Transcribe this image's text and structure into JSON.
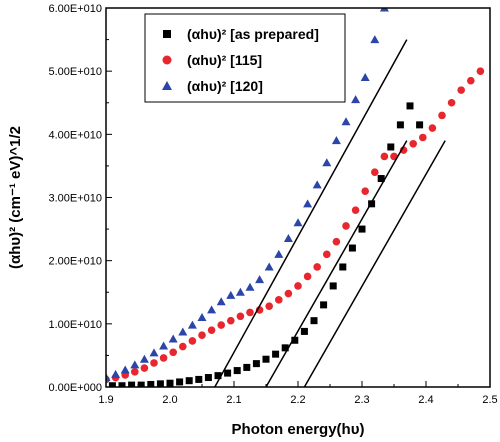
{
  "chart_data": {
    "type": "scatter",
    "title": "",
    "xlabel": "Photon energy(hυ)",
    "ylabel": "(αhυ)² (cm⁻¹ eV)^1/2",
    "xlim": [
      1.9,
      2.5
    ],
    "ylim": [
      0,
      60000000000.0
    ],
    "x_ticks": [
      1.9,
      2.0,
      2.1,
      2.2,
      2.3,
      2.4,
      2.5
    ],
    "x_tick_labels": [
      "1.9",
      "2.0",
      "2.1",
      "2.2",
      "2.3",
      "2.4",
      "2.5"
    ],
    "y_ticks": [
      0,
      10000000000.0,
      20000000000.0,
      30000000000.0,
      40000000000.0,
      50000000000.0,
      60000000000.0
    ],
    "y_tick_labels": [
      "0.00E+000",
      "1.00E+010",
      "2.00E+010",
      "3.00E+010",
      "4.00E+010",
      "5.00E+010",
      "6.00E+010"
    ],
    "grid": false,
    "legend_position": "top-right",
    "series": [
      {
        "name": "(αhυ)² [as prepared]",
        "marker": "square",
        "color": "#000000",
        "points": [
          [
            1.91,
            200000000.0
          ],
          [
            1.925,
            200000000.0
          ],
          [
            1.94,
            300000000.0
          ],
          [
            1.955,
            300000000.0
          ],
          [
            1.97,
            400000000.0
          ],
          [
            1.985,
            500000000.0
          ],
          [
            2.0,
            600000000.0
          ],
          [
            2.015,
            800000000.0
          ],
          [
            2.03,
            1000000000.0
          ],
          [
            2.045,
            1200000000.0
          ],
          [
            2.06,
            1500000000.0
          ],
          [
            2.075,
            1800000000.0
          ],
          [
            2.09,
            2200000000.0
          ],
          [
            2.105,
            2600000000.0
          ],
          [
            2.12,
            3100000000.0
          ],
          [
            2.135,
            3700000000.0
          ],
          [
            2.15,
            4400000000.0
          ],
          [
            2.165,
            5200000000.0
          ],
          [
            2.18,
            6200000000.0
          ],
          [
            2.195,
            7400000000.0
          ],
          [
            2.21,
            8800000000.0
          ],
          [
            2.225,
            10500000000.0
          ],
          [
            2.24,
            13000000000.0
          ],
          [
            2.255,
            16000000000.0
          ],
          [
            2.27,
            19000000000.0
          ],
          [
            2.285,
            22000000000.0
          ],
          [
            2.3,
            25000000000.0
          ],
          [
            2.315,
            29000000000.0
          ],
          [
            2.33,
            33000000000.0
          ],
          [
            2.345,
            38000000000.0
          ],
          [
            2.36,
            41500000000.0
          ],
          [
            2.375,
            44500000000.0
          ],
          [
            2.39,
            41500000000.0
          ]
        ]
      },
      {
        "name": "(αhυ)² [115]",
        "marker": "circle",
        "color": "#e8262d",
        "points": [
          [
            1.9,
            1200000000.0
          ],
          [
            1.915,
            1500000000.0
          ],
          [
            1.93,
            1900000000.0
          ],
          [
            1.945,
            2400000000.0
          ],
          [
            1.96,
            3000000000.0
          ],
          [
            1.975,
            3800000000.0
          ],
          [
            1.99,
            4600000000.0
          ],
          [
            2.005,
            5500000000.0
          ],
          [
            2.02,
            6400000000.0
          ],
          [
            2.035,
            7300000000.0
          ],
          [
            2.05,
            8200000000.0
          ],
          [
            2.065,
            9000000000.0
          ],
          [
            2.08,
            9800000000.0
          ],
          [
            2.095,
            10500000000.0
          ],
          [
            2.11,
            11200000000.0
          ],
          [
            2.125,
            11800000000.0
          ],
          [
            2.14,
            12200000000.0
          ],
          [
            2.155,
            12800000000.0
          ],
          [
            2.17,
            13800000000.0
          ],
          [
            2.185,
            14800000000.0
          ],
          [
            2.2,
            16000000000.0
          ],
          [
            2.215,
            17500000000.0
          ],
          [
            2.23,
            19000000000.0
          ],
          [
            2.245,
            21000000000.0
          ],
          [
            2.26,
            23000000000.0
          ],
          [
            2.275,
            25500000000.0
          ],
          [
            2.29,
            28000000000.0
          ],
          [
            2.305,
            31000000000.0
          ],
          [
            2.32,
            34000000000.0
          ],
          [
            2.335,
            36500000000.0
          ],
          [
            2.35,
            36500000000.0
          ],
          [
            2.365,
            37500000000.0
          ],
          [
            2.38,
            38500000000.0
          ],
          [
            2.395,
            39500000000.0
          ],
          [
            2.41,
            41000000000.0
          ],
          [
            2.425,
            43000000000.0
          ],
          [
            2.44,
            45000000000.0
          ],
          [
            2.455,
            47000000000.0
          ],
          [
            2.47,
            48500000000.0
          ],
          [
            2.485,
            50000000000.0
          ]
        ]
      },
      {
        "name": "(αhυ)² [120]",
        "marker": "triangle",
        "color": "#2b45a8",
        "points": [
          [
            1.9,
            1500000000.0
          ],
          [
            1.915,
            2000000000.0
          ],
          [
            1.93,
            2700000000.0
          ],
          [
            1.945,
            3500000000.0
          ],
          [
            1.96,
            4400000000.0
          ],
          [
            1.975,
            5400000000.0
          ],
          [
            1.99,
            6500000000.0
          ],
          [
            2.005,
            7600000000.0
          ],
          [
            2.02,
            8700000000.0
          ],
          [
            2.035,
            9800000000.0
          ],
          [
            2.05,
            11000000000.0
          ],
          [
            2.065,
            12200000000.0
          ],
          [
            2.08,
            13500000000.0
          ],
          [
            2.095,
            14500000000.0
          ],
          [
            2.11,
            15000000000.0
          ],
          [
            2.125,
            15800000000.0
          ],
          [
            2.14,
            17000000000.0
          ],
          [
            2.155,
            19000000000.0
          ],
          [
            2.17,
            21000000000.0
          ],
          [
            2.185,
            23500000000.0
          ],
          [
            2.2,
            26000000000.0
          ],
          [
            2.215,
            29000000000.0
          ],
          [
            2.23,
            32000000000.0
          ],
          [
            2.245,
            35500000000.0
          ],
          [
            2.26,
            39000000000.0
          ],
          [
            2.275,
            42000000000.0
          ],
          [
            2.29,
            45500000000.0
          ],
          [
            2.305,
            49000000000.0
          ],
          [
            2.32,
            55000000000.0
          ],
          [
            2.335,
            60000000000.0
          ]
        ]
      }
    ],
    "fit_lines": [
      {
        "x": [
          2.07,
          2.37
        ],
        "y": [
          0,
          55000000000.0
        ]
      },
      {
        "x": [
          2.15,
          2.37
        ],
        "y": [
          0,
          39000000000.0
        ]
      },
      {
        "x": [
          2.21,
          2.43
        ],
        "y": [
          0,
          39000000000.0
        ]
      }
    ]
  }
}
